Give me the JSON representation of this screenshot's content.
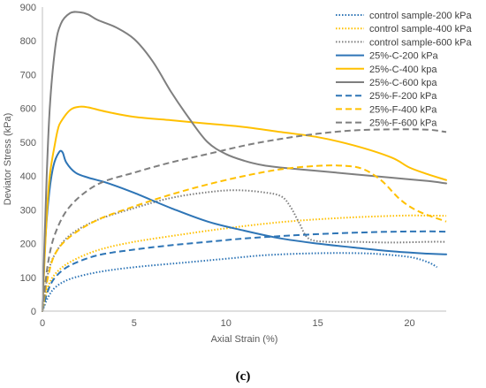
{
  "chart_data": {
    "type": "line",
    "xlabel": "Axial Strain (%)",
    "ylabel": "Deviator Stress (kPa)",
    "xlim": [
      0,
      22
    ],
    "ylim": [
      0,
      900
    ],
    "xticks": [
      0,
      5,
      10,
      15,
      20
    ],
    "yticks": [
      0,
      100,
      200,
      300,
      400,
      500,
      600,
      700,
      800,
      900
    ],
    "grid": false,
    "legend_position": "top-right",
    "caption": "(c)",
    "series": [
      {
        "name": "control sample-200 kPa",
        "color": "#2E75B6",
        "dash": "dotted",
        "points": [
          [
            0,
            0
          ],
          [
            0.3,
            40
          ],
          [
            0.7,
            70
          ],
          [
            1.5,
            95
          ],
          [
            3,
            115
          ],
          [
            5,
            130
          ],
          [
            8,
            145
          ],
          [
            10,
            155
          ],
          [
            12,
            165
          ],
          [
            14,
            170
          ],
          [
            16,
            172
          ],
          [
            18,
            170
          ],
          [
            20,
            160
          ],
          [
            21,
            145
          ],
          [
            21.5,
            130
          ]
        ]
      },
      {
        "name": "control sample-400 kPa",
        "color": "#FFC000",
        "dash": "dotted",
        "points": [
          [
            0,
            0
          ],
          [
            0.3,
            70
          ],
          [
            0.7,
            110
          ],
          [
            1.5,
            145
          ],
          [
            3,
            180
          ],
          [
            5,
            205
          ],
          [
            8,
            230
          ],
          [
            10,
            245
          ],
          [
            12,
            258
          ],
          [
            14,
            268
          ],
          [
            16,
            275
          ],
          [
            18,
            280
          ],
          [
            20,
            283
          ],
          [
            22,
            282
          ]
        ]
      },
      {
        "name": "control sample-600 kPa",
        "color": "#7F7F7F",
        "dash": "dotted",
        "points": [
          [
            0,
            0
          ],
          [
            0.3,
            110
          ],
          [
            0.7,
            170
          ],
          [
            1.5,
            225
          ],
          [
            3,
            270
          ],
          [
            5,
            305
          ],
          [
            7,
            335
          ],
          [
            9,
            352
          ],
          [
            10.5,
            358
          ],
          [
            12,
            352
          ],
          [
            13,
            340
          ],
          [
            13.5,
            310
          ],
          [
            14,
            260
          ],
          [
            14.5,
            215
          ],
          [
            15.5,
            205
          ],
          [
            17,
            205
          ],
          [
            19,
            203
          ],
          [
            21,
            205
          ],
          [
            22,
            205
          ]
        ]
      },
      {
        "name": "25%-C-200 kPa",
        "color": "#2E75B6",
        "dash": "solid",
        "points": [
          [
            0,
            0
          ],
          [
            0.15,
            200
          ],
          [
            0.35,
            340
          ],
          [
            0.6,
            430
          ],
          [
            0.9,
            470
          ],
          [
            1.1,
            470
          ],
          [
            1.3,
            440
          ],
          [
            1.8,
            410
          ],
          [
            2.5,
            395
          ],
          [
            3.5,
            380
          ],
          [
            5,
            350
          ],
          [
            7,
            305
          ],
          [
            9,
            265
          ],
          [
            11,
            238
          ],
          [
            13,
            215
          ],
          [
            15,
            200
          ],
          [
            17,
            188
          ],
          [
            19,
            177
          ],
          [
            21,
            170
          ],
          [
            22,
            168
          ]
        ]
      },
      {
        "name": "25%-C-400 kpa",
        "color": "#FFC000",
        "dash": "solid",
        "points": [
          [
            0,
            0
          ],
          [
            0.2,
            250
          ],
          [
            0.4,
            400
          ],
          [
            0.7,
            500
          ],
          [
            0.85,
            540
          ],
          [
            1,
            560
          ],
          [
            1.5,
            595
          ],
          [
            2,
            605
          ],
          [
            2.5,
            603
          ],
          [
            3.5,
            590
          ],
          [
            5,
            575
          ],
          [
            7,
            565
          ],
          [
            9,
            555
          ],
          [
            11,
            545
          ],
          [
            13,
            530
          ],
          [
            15,
            515
          ],
          [
            17,
            490
          ],
          [
            19,
            455
          ],
          [
            20,
            425
          ],
          [
            21,
            405
          ],
          [
            22,
            388
          ]
        ]
      },
      {
        "name": "25%-C-600 kpa",
        "color": "#7F7F7F",
        "dash": "solid",
        "points": [
          [
            0,
            0
          ],
          [
            0.2,
            350
          ],
          [
            0.4,
            600
          ],
          [
            0.7,
            780
          ],
          [
            1,
            850
          ],
          [
            1.5,
            882
          ],
          [
            2,
            885
          ],
          [
            2.5,
            878
          ],
          [
            3,
            862
          ],
          [
            4,
            840
          ],
          [
            5,
            805
          ],
          [
            6,
            740
          ],
          [
            7,
            650
          ],
          [
            8,
            570
          ],
          [
            9,
            500
          ],
          [
            10,
            465
          ],
          [
            11,
            445
          ],
          [
            12,
            432
          ],
          [
            13,
            425
          ],
          [
            15,
            415
          ],
          [
            17,
            405
          ],
          [
            19,
            395
          ],
          [
            21,
            385
          ],
          [
            22,
            378
          ]
        ]
      },
      {
        "name": "25%-F-200 kPa",
        "color": "#2E75B6",
        "dash": "dashed",
        "points": [
          [
            0,
            0
          ],
          [
            0.3,
            60
          ],
          [
            0.7,
            100
          ],
          [
            1.5,
            135
          ],
          [
            3,
            165
          ],
          [
            5,
            182
          ],
          [
            7,
            195
          ],
          [
            9,
            205
          ],
          [
            11,
            215
          ],
          [
            13,
            222
          ],
          [
            15,
            228
          ],
          [
            17,
            232
          ],
          [
            19,
            235
          ],
          [
            21,
            236
          ],
          [
            22,
            235
          ]
        ]
      },
      {
        "name": "25%-F-400 kPa",
        "color": "#FFC000",
        "dash": "dashed",
        "points": [
          [
            0,
            0
          ],
          [
            0.3,
            100
          ],
          [
            0.7,
            170
          ],
          [
            1.5,
            220
          ],
          [
            3,
            270
          ],
          [
            5,
            310
          ],
          [
            7,
            345
          ],
          [
            9,
            375
          ],
          [
            11,
            400
          ],
          [
            13,
            420
          ],
          [
            15,
            430
          ],
          [
            16.5,
            430
          ],
          [
            17.5,
            420
          ],
          [
            18.5,
            385
          ],
          [
            19.5,
            330
          ],
          [
            20.5,
            295
          ],
          [
            22,
            265
          ]
        ]
      },
      {
        "name": "25%-F-600 kPa",
        "color": "#7F7F7F",
        "dash": "dashed",
        "points": [
          [
            0,
            0
          ],
          [
            0.3,
            140
          ],
          [
            0.7,
            230
          ],
          [
            1.5,
            310
          ],
          [
            3,
            375
          ],
          [
            5,
            410
          ],
          [
            7,
            440
          ],
          [
            9,
            465
          ],
          [
            11,
            490
          ],
          [
            13,
            510
          ],
          [
            15,
            525
          ],
          [
            17,
            535
          ],
          [
            19,
            538
          ],
          [
            21,
            537
          ],
          [
            22,
            530
          ]
        ]
      }
    ]
  }
}
